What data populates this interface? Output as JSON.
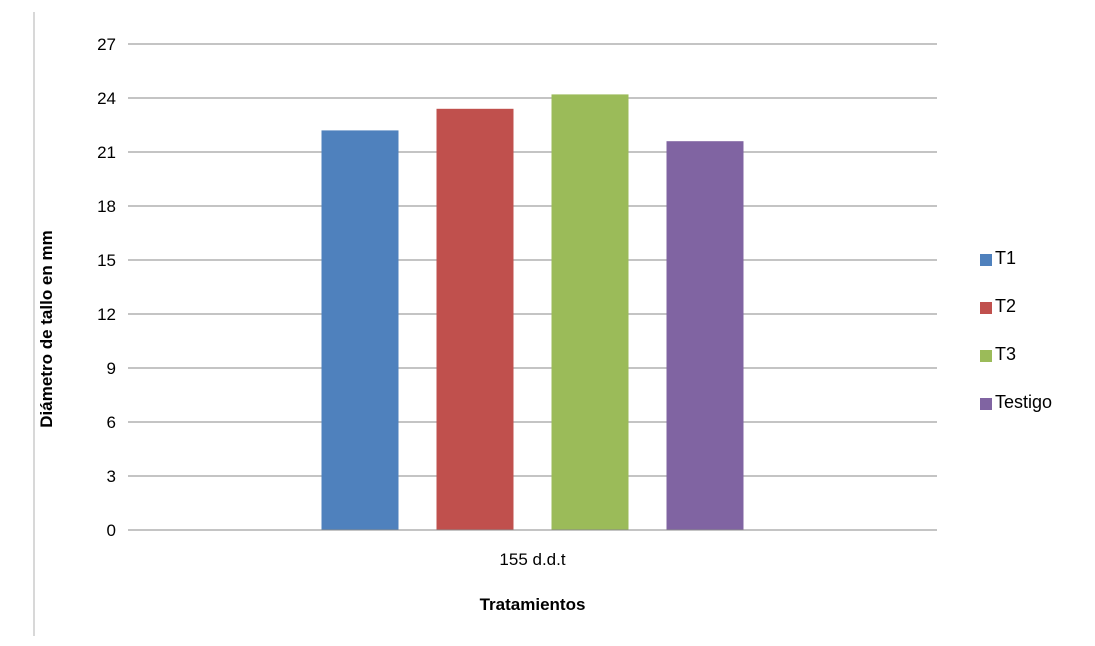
{
  "chart_data": {
    "type": "bar",
    "categories": [
      "155 d.d.t"
    ],
    "series": [
      {
        "name": "T1",
        "values": [
          22.2
        ],
        "color": "#4F81BD"
      },
      {
        "name": "T2",
        "values": [
          23.4
        ],
        "color": "#C0504D"
      },
      {
        "name": "T3",
        "values": [
          24.2
        ],
        "color": "#9BBB59"
      },
      {
        "name": "Testigo",
        "values": [
          21.6
        ],
        "color": "#8064A2"
      }
    ],
    "title": "",
    "xlabel": "Tratamientos",
    "ylabel": "Diámetro de tallo en mm",
    "ylim": [
      0,
      27
    ],
    "yticks": [
      "0",
      "3",
      "6",
      "9",
      "12",
      "15",
      "18",
      "21",
      "24",
      "27"
    ],
    "grid": true,
    "legend": "right"
  }
}
